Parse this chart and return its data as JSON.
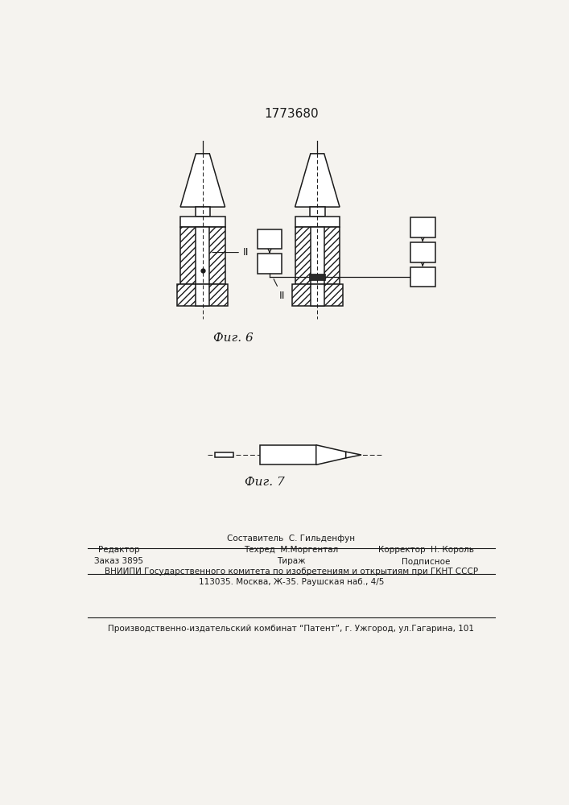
{
  "title": "1773680",
  "fig6_label": "Фиг. 6",
  "fig7_label": "Фиг. 7",
  "footer_line1_left": "Редактор",
  "footer_line1_center": "Составитель  С. Гильденфун",
  "footer_line2_center": "Техред  М.Моргентал",
  "footer_line2_right": "Корректор  Н. Король",
  "footer_line3_left": "Заказ 3895",
  "footer_line3_center": "Тираж",
  "footer_line3_right": "Подписное",
  "footer_line4": "ВНИИПИ Государственного комитета по изобретениям и открытиям при ГКНТ СССР",
  "footer_line5": "113035. Москва, Ж-35. Раушская наб., 4/5",
  "footer_line6": "Производственно-издательский комбинат “Патент”, г. Ужгород, ул.Гагарина, 101",
  "bg_color": "#f5f3ef",
  "line_color": "#1a1a1a"
}
